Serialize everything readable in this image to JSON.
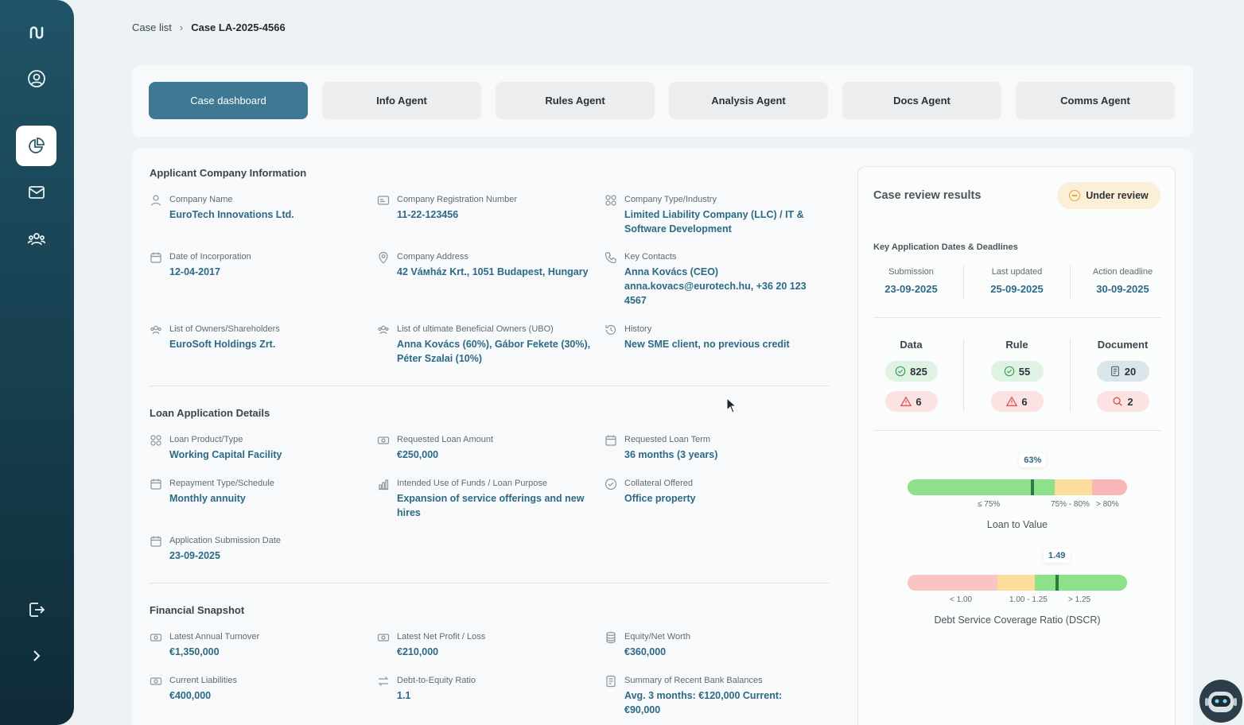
{
  "sidebar": {
    "items": [
      {
        "name": "logo",
        "icon": "logo-icon"
      },
      {
        "name": "profile",
        "icon": "user-circle-icon"
      },
      {
        "name": "cases",
        "icon": "pie-chart-icon",
        "active": true
      },
      {
        "name": "messages",
        "icon": "mail-icon"
      },
      {
        "name": "team",
        "icon": "users-icon"
      },
      {
        "name": "logout",
        "icon": "logout-icon"
      },
      {
        "name": "expand",
        "icon": "chevron-right-icon"
      }
    ]
  },
  "breadcrumb": {
    "parent": "Case list",
    "current": "Case LA-2025-4566"
  },
  "tabs": [
    {
      "label": "Case dashboard",
      "active": true
    },
    {
      "label": "Info Agent"
    },
    {
      "label": "Rules Agent"
    },
    {
      "label": "Analysis Agent"
    },
    {
      "label": "Docs Agent"
    },
    {
      "label": "Comms Agent"
    }
  ],
  "applicant": {
    "title": "Applicant Company Information",
    "fields": [
      {
        "label": "Company Name",
        "value": "EuroTech Innovations Ltd.",
        "icon": "user-icon"
      },
      {
        "label": "Company Registration Number",
        "value": "11-22-123456",
        "icon": "id-card-icon"
      },
      {
        "label": "Company Type/Industry",
        "value": "Limited Liability Company (LLC) / IT & Software Development",
        "icon": "grid-icon"
      },
      {
        "label": "Date of Incorporation",
        "value": "12-04-2017",
        "icon": "calendar-icon"
      },
      {
        "label": "Company Address",
        "value": "42 Váмház Krt., 1051 Budapest, Hungary",
        "icon": "map-pin-icon"
      },
      {
        "label": "Key Contacts",
        "value": "Anna Kovács (CEO) anna.kovacs@eurotech.hu, +36 20 123 4567",
        "icon": "phone-icon"
      },
      {
        "label": "List of Owners/Shareholders",
        "value": "EuroSoft Holdings Zrt.",
        "icon": "users-icon"
      },
      {
        "label": "List of ultimate Beneficial Owners (UBO)",
        "value": "Anna Kovács (60%), Gábor Fekete (30%), Péter Szalai (10%)",
        "icon": "users-icon"
      },
      {
        "label": "History",
        "value": "New SME client, no previous credit",
        "icon": "history-icon"
      }
    ]
  },
  "loan": {
    "title": "Loan Application Details",
    "fields": [
      {
        "label": "Loan Product/Type",
        "value": "Working Capital Facility",
        "icon": "grid-icon"
      },
      {
        "label": "Requested Loan Amount",
        "value": "€250,000",
        "icon": "money-icon"
      },
      {
        "label": "Requested Loan Term",
        "value": "36 months (3 years)",
        "icon": "calendar-icon"
      },
      {
        "label": "Repayment Type/Schedule",
        "value": "Monthly annuity",
        "icon": "calendar-icon"
      },
      {
        "label": "Intended Use of Funds / Loan Purpose",
        "value": "Expansion of service offerings and new hires",
        "icon": "bar-chart-icon"
      },
      {
        "label": "Collateral Offered",
        "value": "Office property",
        "icon": "check-circle-icon"
      },
      {
        "label": "Application Submission Date",
        "value": "23-09-2025",
        "icon": "calendar-icon"
      }
    ]
  },
  "financial": {
    "title": "Financial Snapshot",
    "fields": [
      {
        "label": "Latest Annual Turnover",
        "value": "€1,350,000",
        "icon": "money-icon"
      },
      {
        "label": "Latest Net Profit / Loss",
        "value": "€210,000",
        "icon": "money-icon"
      },
      {
        "label": "Equity/Net Worth",
        "value": "€360,000",
        "icon": "database-icon"
      },
      {
        "label": "Current Liabilities",
        "value": "€400,000",
        "icon": "money-icon"
      },
      {
        "label": "Debt-to-Equity Ratio",
        "value": "1.1",
        "icon": "swap-icon"
      },
      {
        "label": "Summary of Recent Bank Balances",
        "value": "Avg. 3 months: €120,000 Current: €90,000",
        "icon": "document-icon"
      }
    ]
  },
  "review": {
    "title": "Case review results",
    "status": "Under review",
    "dates_title": "Key Application Dates & Deadlines",
    "dates": [
      {
        "label": "Submission",
        "value": "23-09-2025"
      },
      {
        "label": "Last updated",
        "value": "25-09-2025"
      },
      {
        "label": "Action deadline",
        "value": "30-09-2025"
      }
    ],
    "categories": [
      {
        "title": "Data",
        "ok": "825",
        "warn": "6"
      },
      {
        "title": "Rule",
        "ok": "55",
        "warn": "6"
      },
      {
        "title": "Document",
        "docs": "20",
        "search": "2"
      }
    ],
    "ltv": {
      "name": "Loan to Value",
      "value_label": "63%",
      "value_fraction": 0.57,
      "ticks": [
        "≤ 75%",
        "75% - 80%",
        "> 80%"
      ],
      "colors": [
        "#8fe08a",
        "#fbdc9a",
        "#f9b6b6"
      ]
    },
    "dscr": {
      "name": "Debt Service Coverage Ratio (DSCR)",
      "value_label": "1.49",
      "value_fraction": 0.68,
      "ticks": [
        "< 1.00",
        "1.00 - 1.25",
        "> 1.25"
      ],
      "colors": [
        "#f9c4c4",
        "#fbdc9a",
        "#8fe08a"
      ]
    }
  }
}
